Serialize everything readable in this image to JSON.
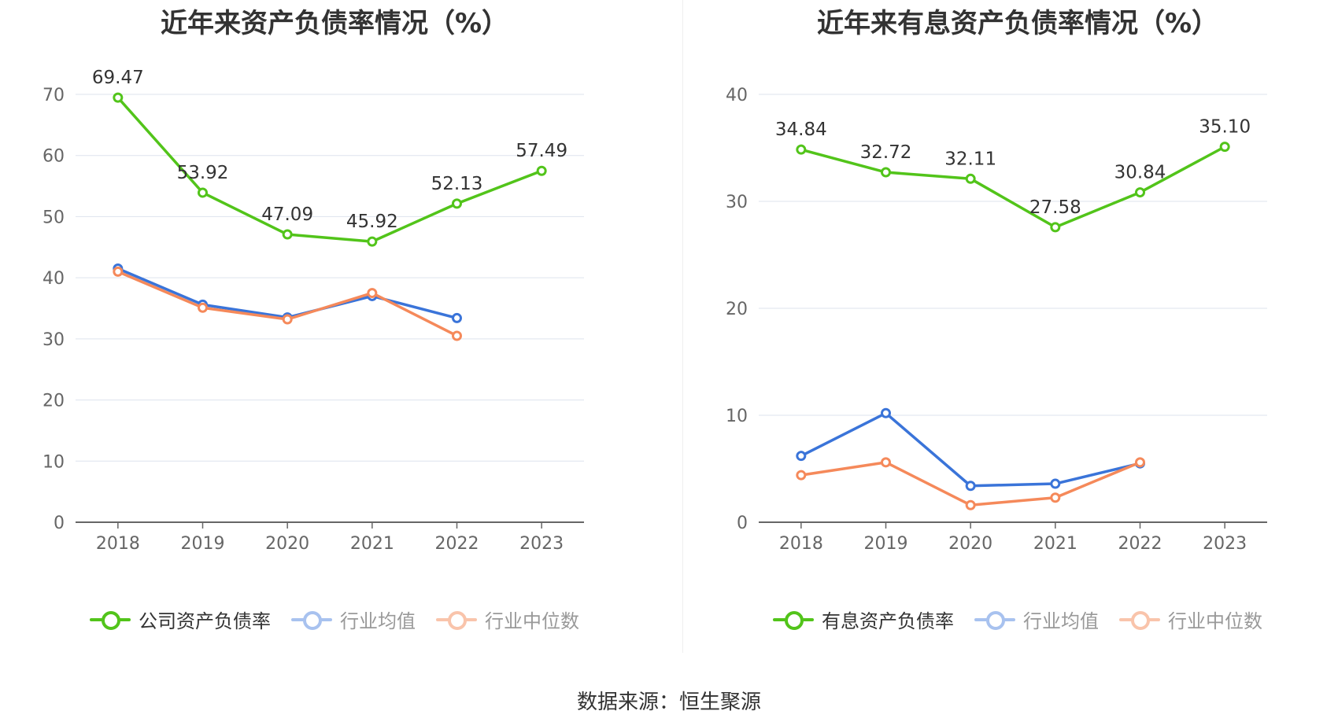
{
  "charts": [
    {
      "title": "近年来资产负债率情况（%）",
      "legend": [
        "公司资产负债率",
        "行业均值",
        "行业中位数"
      ]
    },
    {
      "title": "近年来有息资产负债率情况（%）",
      "legend": [
        "有息资产负债率",
        "行业均值",
        "行业中位数"
      ]
    }
  ],
  "source": "数据来源：恒生聚源",
  "colors": {
    "company": "#52c41a",
    "avg": "#3a74d9",
    "median": "#f5895a",
    "grid": "#dde3ee",
    "axis": "#666666"
  },
  "chart_data": [
    {
      "type": "line",
      "title": "近年来资产负债率情况（%）",
      "categories": [
        "2018",
        "2019",
        "2020",
        "2021",
        "2022",
        "2023"
      ],
      "ylim": [
        0,
        70
      ],
      "yticks": [
        0,
        10,
        20,
        30,
        40,
        50,
        60,
        70
      ],
      "grid": true,
      "legend_position": "bottom",
      "series": [
        {
          "name": "公司资产负债率",
          "values": [
            69.47,
            53.92,
            47.09,
            45.92,
            52.13,
            57.49
          ],
          "labels": [
            "69.47",
            "53.92",
            "47.09",
            "45.92",
            "52.13",
            "57.49"
          ]
        },
        {
          "name": "行业均值",
          "values": [
            41.5,
            35.6,
            33.5,
            37.0,
            33.4,
            null
          ]
        },
        {
          "name": "行业中位数",
          "values": [
            41.0,
            35.1,
            33.2,
            37.5,
            30.5,
            null
          ]
        }
      ]
    },
    {
      "type": "line",
      "title": "近年来有息资产负债率情况（%）",
      "categories": [
        "2018",
        "2019",
        "2020",
        "2021",
        "2022",
        "2023"
      ],
      "ylim": [
        0,
        40
      ],
      "yticks": [
        0,
        10,
        20,
        30,
        40
      ],
      "grid": true,
      "legend_position": "bottom",
      "series": [
        {
          "name": "有息资产负债率",
          "values": [
            34.84,
            32.72,
            32.11,
            27.58,
            30.84,
            35.1
          ],
          "labels": [
            "34.84",
            "32.72",
            "32.11",
            "27.58",
            "30.84",
            "35.10"
          ]
        },
        {
          "name": "行业均值",
          "values": [
            6.2,
            10.2,
            3.4,
            3.6,
            5.5,
            null
          ]
        },
        {
          "name": "行业中位数",
          "values": [
            4.4,
            5.6,
            1.6,
            2.3,
            5.6,
            null
          ]
        }
      ]
    }
  ]
}
